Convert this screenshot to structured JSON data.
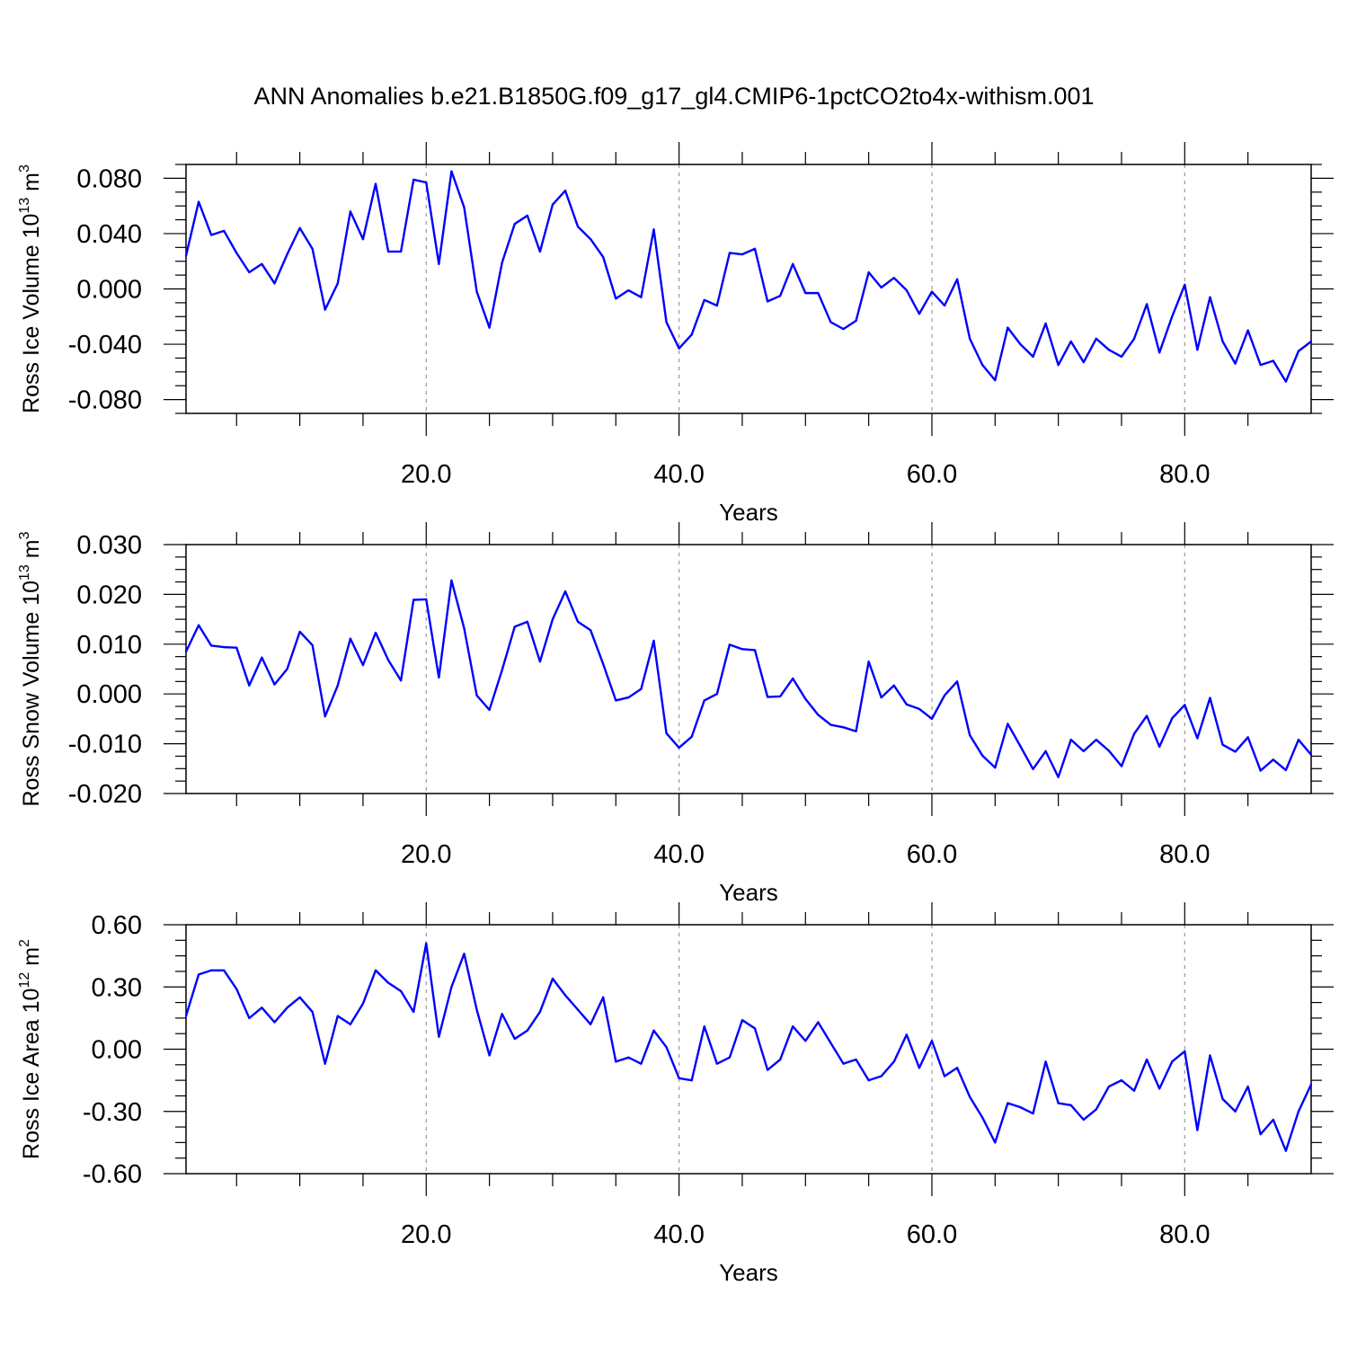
{
  "title": "ANN Anomalies b.e21.B1850G.f09_g17_gl4.CMIP6-1pctCO2to4x-withism.001",
  "colors": {
    "line": "#0000ff",
    "axis": "#000000",
    "gridline": "#999999"
  },
  "chart_data": [
    {
      "type": "line",
      "ylabel_base": "Ross Ice Volume 10",
      "ylabel_exp": "13",
      "ylabel_unit": " m",
      "ylabel_unit_exp": "3",
      "xlabel": "Years",
      "xlim": [
        1,
        90
      ],
      "ylim": [
        -0.09,
        0.09
      ],
      "yticks": [
        0.08,
        0.04,
        0.0,
        -0.04,
        -0.08
      ],
      "yticklabels": [
        "0.080",
        "0.040",
        "0.000",
        "-0.040",
        "-0.080"
      ],
      "xticks": [
        20,
        40,
        60,
        80
      ],
      "xticklabels": [
        "20.0",
        "40.0",
        "60.0",
        "80.0"
      ],
      "grid": "vertical dashed at x ticks",
      "series": [
        {
          "values": [
            0.024,
            0.063,
            0.039,
            0.042,
            0.026,
            0.012,
            0.018,
            0.004,
            0.025,
            0.044,
            0.029,
            -0.015,
            0.004,
            0.056,
            0.036,
            0.076,
            0.027,
            0.027,
            0.079,
            0.077,
            0.018,
            0.085,
            0.059,
            -0.002,
            -0.028,
            0.019,
            0.047,
            0.053,
            0.027,
            0.061,
            0.071,
            0.045,
            0.036,
            0.023,
            -0.007,
            -0.001,
            -0.006,
            0.043,
            -0.024,
            -0.043,
            -0.033,
            -0.008,
            -0.012,
            0.026,
            0.025,
            0.029,
            -0.009,
            -0.005,
            0.018,
            -0.003,
            -0.003,
            -0.024,
            -0.029,
            -0.023,
            0.012,
            0.001,
            0.008,
            -0.001,
            -0.018,
            -0.002,
            -0.012,
            0.007,
            -0.036,
            -0.055,
            -0.066,
            -0.028,
            -0.04,
            -0.049,
            -0.025,
            -0.055,
            -0.038,
            -0.053,
            -0.036,
            -0.044,
            -0.049,
            -0.036,
            -0.011,
            -0.046,
            -0.02,
            0.003,
            -0.044,
            -0.006,
            -0.038,
            -0.054,
            -0.03,
            -0.055,
            -0.052,
            -0.067,
            -0.045,
            -0.038
          ]
        }
      ]
    },
    {
      "type": "line",
      "ylabel_base": "Ross Snow Volume 10",
      "ylabel_exp": "13",
      "ylabel_unit": " m",
      "ylabel_unit_exp": "3",
      "xlabel": "Years",
      "xlim": [
        1,
        90
      ],
      "ylim": [
        -0.02,
        0.03
      ],
      "yticks": [
        0.03,
        0.02,
        0.01,
        0.0,
        -0.01,
        -0.02
      ],
      "yticklabels": [
        "0.030",
        "0.020",
        "0.010",
        "0.000",
        "-0.010",
        "-0.020"
      ],
      "xticks": [
        20,
        40,
        60,
        80
      ],
      "xticklabels": [
        "20.0",
        "40.0",
        "60.0",
        "80.0"
      ],
      "grid": "vertical dashed at x ticks",
      "series": [
        {
          "values": [
            0.0085,
            0.0138,
            0.0097,
            0.0094,
            0.0093,
            0.0017,
            0.0073,
            0.0019,
            0.005,
            0.0125,
            0.0098,
            -0.0045,
            0.0017,
            0.0111,
            0.0058,
            0.0123,
            0.0068,
            0.0027,
            0.0189,
            0.019,
            0.0033,
            0.0228,
            0.0132,
            -0.0003,
            -0.0032,
            0.0048,
            0.0135,
            0.0145,
            0.0065,
            0.015,
            0.0206,
            0.0145,
            0.0128,
            0.006,
            -0.0013,
            -0.0007,
            0.001,
            0.0107,
            -0.0079,
            -0.0108,
            -0.0086,
            -0.0013,
            0.0,
            0.0099,
            0.009,
            0.0088,
            -0.0006,
            -0.0005,
            0.0031,
            -0.001,
            -0.0042,
            -0.0062,
            -0.0067,
            -0.0075,
            0.0065,
            -0.0007,
            0.0017,
            -0.0021,
            -0.003,
            -0.005,
            -0.0003,
            0.0025,
            -0.0083,
            -0.0124,
            -0.0148,
            -0.006,
            -0.0105,
            -0.0151,
            -0.0115,
            -0.0167,
            -0.0092,
            -0.0115,
            -0.0092,
            -0.0114,
            -0.0145,
            -0.008,
            -0.0044,
            -0.0106,
            -0.0049,
            -0.0022,
            -0.0089,
            -0.0008,
            -0.0102,
            -0.0116,
            -0.0087,
            -0.0154,
            -0.0132,
            -0.0153,
            -0.0092,
            -0.0122
          ]
        }
      ]
    },
    {
      "type": "line",
      "ylabel_base": "Ross Ice Area 10",
      "ylabel_exp": "12",
      "ylabel_unit": " m",
      "ylabel_unit_exp": "2",
      "xlabel": "Years",
      "xlim": [
        1,
        90
      ],
      "ylim": [
        -0.6,
        0.6
      ],
      "yticks": [
        0.6,
        0.3,
        0.0,
        -0.3,
        -0.6
      ],
      "yticklabels": [
        "0.60",
        "0.30",
        "0.00",
        "-0.30",
        "-0.60"
      ],
      "xticks": [
        20,
        40,
        60,
        80
      ],
      "xticklabels": [
        "20.0",
        "40.0",
        "60.0",
        "80.0"
      ],
      "grid": "vertical dashed at x ticks",
      "series": [
        {
          "values": [
            0.16,
            0.36,
            0.38,
            0.38,
            0.29,
            0.15,
            0.2,
            0.13,
            0.2,
            0.25,
            0.18,
            -0.07,
            0.16,
            0.12,
            0.22,
            0.38,
            0.32,
            0.28,
            0.18,
            0.51,
            0.06,
            0.3,
            0.46,
            0.19,
            -0.03,
            0.17,
            0.05,
            0.09,
            0.18,
            0.34,
            0.26,
            0.19,
            0.12,
            0.25,
            -0.06,
            -0.04,
            -0.07,
            0.09,
            0.01,
            -0.14,
            -0.15,
            0.11,
            -0.07,
            -0.04,
            0.14,
            0.1,
            -0.1,
            -0.05,
            0.11,
            0.04,
            0.13,
            0.03,
            -0.07,
            -0.05,
            -0.15,
            -0.13,
            -0.06,
            0.07,
            -0.09,
            0.04,
            -0.13,
            -0.09,
            -0.23,
            -0.33,
            -0.45,
            -0.26,
            -0.28,
            -0.31,
            -0.06,
            -0.26,
            -0.27,
            -0.34,
            -0.29,
            -0.18,
            -0.15,
            -0.2,
            -0.05,
            -0.19,
            -0.06,
            -0.01,
            -0.39,
            -0.03,
            -0.24,
            -0.3,
            -0.18,
            -0.41,
            -0.34,
            -0.49,
            -0.3,
            -0.17
          ]
        }
      ]
    }
  ]
}
